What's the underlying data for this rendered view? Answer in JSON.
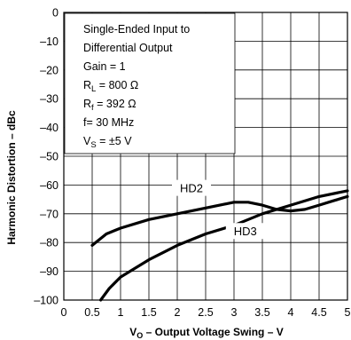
{
  "chart_data": {
    "type": "line",
    "title": "",
    "xlabel": {
      "main": "V",
      "sub": "O",
      "rest": " – Output Voltage Swing – V"
    },
    "ylabel": "Harmonic Distortion – dBc",
    "xlim": [
      0,
      5
    ],
    "ylim": [
      -100,
      0
    ],
    "x_ticks": [
      "0",
      "0.5",
      "1",
      "1.5",
      "2",
      "2.5",
      "3",
      "3.5",
      "4",
      "4.5",
      "5"
    ],
    "y_ticks": [
      "0",
      "–10",
      "–20",
      "–30",
      "–40",
      "–50",
      "–60",
      "–70",
      "–80",
      "–90",
      "–100"
    ],
    "grid": true,
    "annotation": {
      "line1": "Single-Ended Input to",
      "line2": "Differential Output",
      "line3": "Gain = 1",
      "rl": {
        "main": "R",
        "sub": "L",
        "rest": " = 800 Ω"
      },
      "rf": {
        "main": "R",
        "sub": "f",
        "rest": " = 392 Ω"
      },
      "freq": "f= 30 MHz",
      "vs": {
        "main": "V",
        "sub": "S",
        "rest": " = ±5 V"
      }
    },
    "series": [
      {
        "name": "HD2",
        "x": [
          0.5,
          0.75,
          1.0,
          1.5,
          2.0,
          2.5,
          3.0,
          3.25,
          3.5,
          3.75,
          4.0,
          4.25,
          4.5,
          4.75,
          5.0
        ],
        "y": [
          -81,
          -77,
          -75,
          -72,
          -70,
          -68,
          -66,
          -66,
          -67,
          -68.5,
          -69,
          -68.5,
          -67,
          -65.5,
          -64
        ]
      },
      {
        "name": "HD3",
        "x": [
          0.65,
          0.8,
          1.0,
          1.25,
          1.5,
          2.0,
          2.5,
          3.0,
          3.5,
          4.0,
          4.5,
          5.0
        ],
        "y": [
          -100,
          -96,
          -92,
          -89,
          -86,
          -81,
          -77,
          -74,
          -70,
          -67,
          -64,
          -62
        ]
      }
    ],
    "label_positions": {
      "HD2": {
        "x": 2.25,
        "y": -61
      },
      "HD3": {
        "x": 3.2,
        "y": -76
      }
    }
  }
}
